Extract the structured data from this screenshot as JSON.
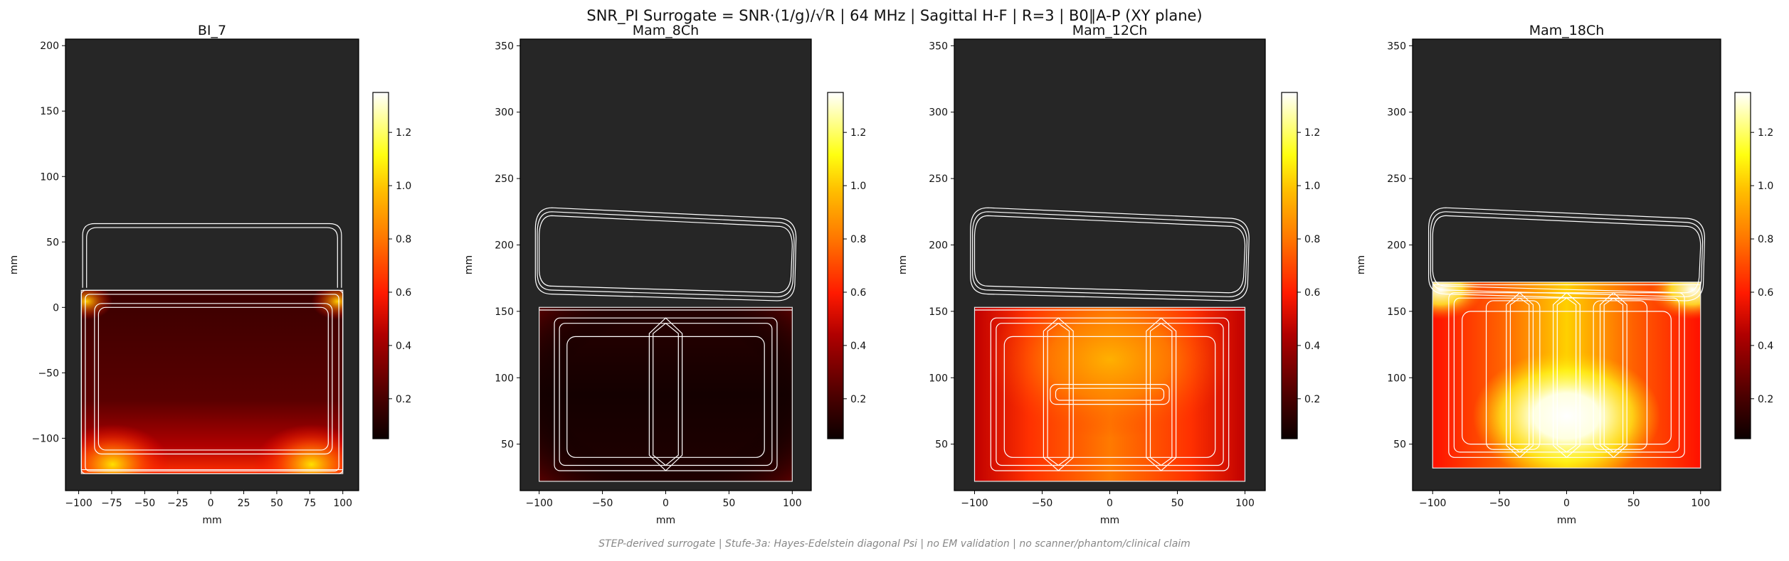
{
  "figure": {
    "suptitle": "SNR_PI Surrogate = SNR·(1/g)/√R | 64 MHz | Sagittal H-F | R=3 | B0∥A-P (XY plane)",
    "footer": "STEP-derived surrogate | Stufe-3a: Hayes-Edelstein diagonal Psi | no EM validation | no scanner/phantom/clinical claim",
    "colormap": "hot",
    "background_color": "#262626",
    "coil_outline_color": "#ffffff"
  },
  "chart_data": [
    {
      "type": "heatmap",
      "title": "BI_7",
      "xlabel": "mm",
      "ylabel": "mm",
      "xlim": [
        -110,
        112
      ],
      "ylim": [
        -140,
        205
      ],
      "xticks": [
        -100,
        -75,
        -50,
        -25,
        0,
        25,
        50,
        75,
        100
      ],
      "yticks": [
        -100,
        -50,
        0,
        50,
        100,
        150,
        200
      ],
      "colorbar": {
        "min": 0.05,
        "max": 1.35,
        "ticks": [
          0.2,
          0.4,
          0.6,
          0.8,
          1.0,
          1.2
        ]
      },
      "field_extent": {
        "x": [
          -98,
          100
        ],
        "y": [
          -127,
          13
        ]
      },
      "field_profile": "low central values (~0.15), bright rim along bottom edge and corners (~0.9–1.3)"
    },
    {
      "type": "heatmap",
      "title": "Mam_8Ch",
      "xlabel": "mm",
      "ylabel": "mm",
      "xlim": [
        -115,
        115
      ],
      "ylim": [
        15,
        355
      ],
      "xticks": [
        -100,
        -50,
        0,
        50,
        100
      ],
      "yticks": [
        50,
        100,
        150,
        200,
        250,
        300,
        350
      ],
      "colorbar": {
        "min": 0.05,
        "max": 1.35,
        "ticks": [
          0.2,
          0.4,
          0.6,
          0.8,
          1.0,
          1.2
        ]
      },
      "field_extent": {
        "x": [
          -100,
          100
        ],
        "y": [
          22,
          153
        ]
      },
      "field_profile": "mostly dark (~0.05–0.15), slightly brighter near coil edges"
    },
    {
      "type": "heatmap",
      "title": "Mam_12Ch",
      "xlabel": "mm",
      "ylabel": "mm",
      "xlim": [
        -115,
        115
      ],
      "ylim": [
        15,
        355
      ],
      "xticks": [
        -100,
        -50,
        0,
        50,
        100
      ],
      "yticks": [
        50,
        100,
        150,
        200,
        250,
        300,
        350
      ],
      "colorbar": {
        "min": 0.05,
        "max": 1.35,
        "ticks": [
          0.2,
          0.4,
          0.6,
          0.8,
          1.0,
          1.2
        ]
      },
      "field_extent": {
        "x": [
          -100,
          100
        ],
        "y": [
          22,
          153
        ]
      },
      "field_profile": "moderate values (~0.45–0.85), brightest near upper centre"
    },
    {
      "type": "heatmap",
      "title": "Mam_18Ch",
      "xlabel": "mm",
      "ylabel": "mm",
      "xlim": [
        -115,
        115
      ],
      "ylim": [
        15,
        355
      ],
      "xticks": [
        -100,
        -50,
        0,
        50,
        100
      ],
      "yticks": [
        50,
        100,
        150,
        200,
        250,
        300,
        350
      ],
      "colorbar": {
        "min": 0.05,
        "max": 1.35,
        "ticks": [
          0.2,
          0.4,
          0.6,
          0.8,
          1.0,
          1.2
        ]
      },
      "field_extent": {
        "x": [
          -100,
          100
        ],
        "y": [
          32,
          172
        ]
      },
      "field_profile": "high values (~0.6–1.35+), saturated white near lower centre, bright top corners"
    }
  ]
}
